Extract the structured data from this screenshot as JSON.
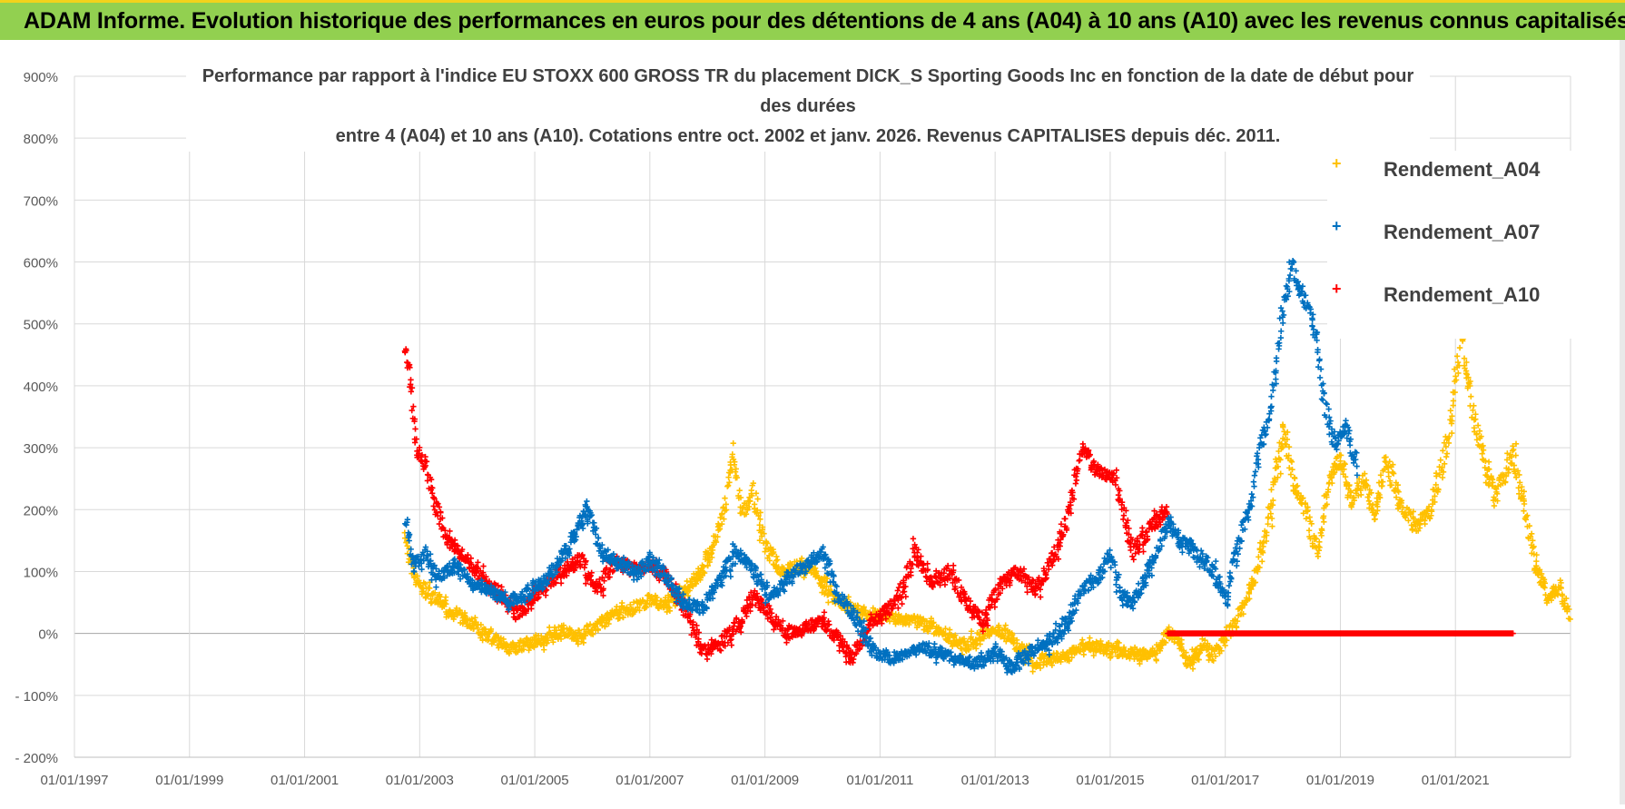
{
  "header": {
    "title": "ADAM Informe. Evolution historique des performances en euros pour des détentions de 4 ans (A04) à 10 ans (A10) avec les revenus connus capitalisés"
  },
  "colors": {
    "banner": "#92d050",
    "a04": "#ffc000",
    "a07": "#0070c0",
    "a10": "#ff0000",
    "grid": "#d9d9d9",
    "text": "#595959"
  },
  "chart_data": {
    "type": "scatter",
    "title_lines": [
      "Performance par rapport à l'indice EU STOXX 600 GROSS TR  du placement DICK_S Sporting Goods Inc en fonction de la date de début pour des durées",
      "entre 4 (A04) et 10 ans (A10).  Cotations entre oct. 2002 et janv. 2026.  Revenus CAPITALISES depuis déc. 2011."
    ],
    "x_ticks": [
      "01/01/1997",
      "01/01/1999",
      "01/01/2001",
      "01/01/2003",
      "01/01/2005",
      "01/01/2007",
      "01/01/2009",
      "01/01/2011",
      "01/01/2013",
      "01/01/2015",
      "01/01/2017",
      "01/01/2019",
      "01/01/2021"
    ],
    "y_ticks": [
      "900%",
      "800%",
      "700%",
      "600%",
      "500%",
      "400%",
      "300%",
      "200%",
      "100%",
      "0%",
      "- 100%",
      "- 200%"
    ],
    "xlim": [
      1997.0,
      2023.0
    ],
    "ylim": [
      -200,
      900
    ],
    "marker": "+",
    "series": [
      {
        "name": "Rendement_A04",
        "color": "#ffc000",
        "points": [
          [
            2002.75,
            150
          ],
          [
            2002.9,
            90
          ],
          [
            2003.2,
            60
          ],
          [
            2003.5,
            40
          ],
          [
            2003.8,
            20
          ],
          [
            2004.0,
            10
          ],
          [
            2004.3,
            -10
          ],
          [
            2004.6,
            -25
          ],
          [
            2004.9,
            -15
          ],
          [
            2005.2,
            -10
          ],
          [
            2005.5,
            5
          ],
          [
            2005.8,
            -5
          ],
          [
            2006.1,
            15
          ],
          [
            2006.4,
            30
          ],
          [
            2006.7,
            40
          ],
          [
            2007.0,
            55
          ],
          [
            2007.3,
            45
          ],
          [
            2007.6,
            70
          ],
          [
            2007.9,
            100
          ],
          [
            2008.1,
            140
          ],
          [
            2008.3,
            200
          ],
          [
            2008.45,
            290
          ],
          [
            2008.6,
            190
          ],
          [
            2008.8,
            230
          ],
          [
            2009.0,
            140
          ],
          [
            2009.3,
            100
          ],
          [
            2009.6,
            110
          ],
          [
            2009.9,
            95
          ],
          [
            2010.2,
            60
          ],
          [
            2010.5,
            40
          ],
          [
            2010.8,
            25
          ],
          [
            2011.0,
            30
          ],
          [
            2011.3,
            25
          ],
          [
            2011.6,
            20
          ],
          [
            2011.9,
            10
          ],
          [
            2012.2,
            -5
          ],
          [
            2012.5,
            -20
          ],
          [
            2012.8,
            0
          ],
          [
            2013.1,
            5
          ],
          [
            2013.4,
            -20
          ],
          [
            2013.7,
            -45
          ],
          [
            2014.0,
            -40
          ],
          [
            2014.3,
            -35
          ],
          [
            2014.6,
            -20
          ],
          [
            2014.9,
            -25
          ],
          [
            2015.2,
            -30
          ],
          [
            2015.5,
            -35
          ],
          [
            2015.8,
            -30
          ],
          [
            2016.0,
            5
          ],
          [
            2016.2,
            -20
          ],
          [
            2016.4,
            -55
          ],
          [
            2016.6,
            -15
          ],
          [
            2016.8,
            -35
          ],
          [
            2017.0,
            -10
          ],
          [
            2017.2,
            20
          ],
          [
            2017.4,
            60
          ],
          [
            2017.6,
            120
          ],
          [
            2017.8,
            200
          ],
          [
            2018.0,
            330
          ],
          [
            2018.2,
            240
          ],
          [
            2018.4,
            200
          ],
          [
            2018.6,
            130
          ],
          [
            2018.8,
            240
          ],
          [
            2019.0,
            290
          ],
          [
            2019.2,
            210
          ],
          [
            2019.4,
            250
          ],
          [
            2019.6,
            200
          ],
          [
            2019.8,
            280
          ],
          [
            2020.0,
            220
          ],
          [
            2020.3,
            170
          ],
          [
            2020.6,
            200
          ],
          [
            2020.9,
            330
          ],
          [
            2021.1,
            490
          ],
          [
            2021.3,
            360
          ],
          [
            2021.5,
            280
          ],
          [
            2021.7,
            220
          ],
          [
            2022.0,
            290
          ],
          [
            2022.2,
            200
          ],
          [
            2022.4,
            110
          ],
          [
            2022.6,
            60
          ],
          [
            2022.8,
            70
          ],
          [
            2023.0,
            30
          ]
        ]
      },
      {
        "name": "Rendement_A07",
        "color": "#0070c0",
        "points": [
          [
            2002.75,
            190
          ],
          [
            2002.9,
            110
          ],
          [
            2003.1,
            130
          ],
          [
            2003.3,
            90
          ],
          [
            2003.6,
            110
          ],
          [
            2003.9,
            80
          ],
          [
            2004.2,
            70
          ],
          [
            2004.5,
            50
          ],
          [
            2004.8,
            60
          ],
          [
            2005.1,
            80
          ],
          [
            2005.4,
            110
          ],
          [
            2005.7,
            160
          ],
          [
            2005.9,
            200
          ],
          [
            2006.2,
            130
          ],
          [
            2006.5,
            110
          ],
          [
            2006.8,
            100
          ],
          [
            2007.0,
            120
          ],
          [
            2007.3,
            90
          ],
          [
            2007.6,
            50
          ],
          [
            2007.9,
            40
          ],
          [
            2008.2,
            80
          ],
          [
            2008.5,
            130
          ],
          [
            2008.8,
            100
          ],
          [
            2009.1,
            60
          ],
          [
            2009.4,
            90
          ],
          [
            2009.7,
            110
          ],
          [
            2010.0,
            130
          ],
          [
            2010.3,
            60
          ],
          [
            2010.6,
            20
          ],
          [
            2010.9,
            -30
          ],
          [
            2011.2,
            -40
          ],
          [
            2011.5,
            -30
          ],
          [
            2011.8,
            -25
          ],
          [
            2012.1,
            -35
          ],
          [
            2012.4,
            -40
          ],
          [
            2012.7,
            -50
          ],
          [
            2013.0,
            -30
          ],
          [
            2013.3,
            -55
          ],
          [
            2013.6,
            -30
          ],
          [
            2013.9,
            -20
          ],
          [
            2014.2,
            10
          ],
          [
            2014.5,
            70
          ],
          [
            2014.8,
            90
          ],
          [
            2015.0,
            130
          ],
          [
            2015.2,
            60
          ],
          [
            2015.4,
            50
          ],
          [
            2015.6,
            90
          ],
          [
            2015.8,
            130
          ],
          [
            2016.0,
            180
          ],
          [
            2016.2,
            150
          ],
          [
            2016.5,
            130
          ],
          [
            2016.8,
            100
          ],
          [
            2017.0,
            50
          ],
          [
            2017.2,
            130
          ],
          [
            2017.4,
            200
          ],
          [
            2017.6,
            300
          ],
          [
            2017.8,
            360
          ],
          [
            2018.0,
            520
          ],
          [
            2018.15,
            600
          ],
          [
            2018.3,
            550
          ],
          [
            2018.5,
            520
          ],
          [
            2018.7,
            380
          ],
          [
            2018.9,
            310
          ],
          [
            2019.1,
            330
          ],
          [
            2019.3,
            270
          ]
        ]
      },
      {
        "name": "Rendement_A10",
        "color": "#ff0000",
        "points": [
          [
            2002.75,
            460
          ],
          [
            2002.85,
            400
          ],
          [
            2002.95,
            300
          ],
          [
            2003.1,
            270
          ],
          [
            2003.3,
            200
          ],
          [
            2003.5,
            150
          ],
          [
            2003.7,
            130
          ],
          [
            2003.9,
            110
          ],
          [
            2004.1,
            90
          ],
          [
            2004.4,
            60
          ],
          [
            2004.7,
            30
          ],
          [
            2004.9,
            50
          ],
          [
            2005.2,
            80
          ],
          [
            2005.5,
            100
          ],
          [
            2005.8,
            120
          ],
          [
            2006.1,
            70
          ],
          [
            2006.4,
            120
          ],
          [
            2006.7,
            100
          ],
          [
            2007.0,
            110
          ],
          [
            2007.3,
            90
          ],
          [
            2007.6,
            40
          ],
          [
            2007.9,
            -30
          ],
          [
            2008.2,
            -20
          ],
          [
            2008.5,
            10
          ],
          [
            2008.8,
            60
          ],
          [
            2009.1,
            30
          ],
          [
            2009.4,
            0
          ],
          [
            2009.7,
            10
          ],
          [
            2010.0,
            20
          ],
          [
            2010.3,
            -10
          ],
          [
            2010.5,
            -40
          ],
          [
            2010.8,
            10
          ],
          [
            2011.0,
            30
          ],
          [
            2011.3,
            50
          ],
          [
            2011.6,
            130
          ],
          [
            2011.9,
            80
          ],
          [
            2012.2,
            100
          ],
          [
            2012.5,
            50
          ],
          [
            2012.8,
            20
          ],
          [
            2013.1,
            80
          ],
          [
            2013.4,
            100
          ],
          [
            2013.7,
            70
          ],
          [
            2014.0,
            120
          ],
          [
            2014.3,
            200
          ],
          [
            2014.5,
            300
          ],
          [
            2014.8,
            260
          ],
          [
            2015.1,
            250
          ],
          [
            2015.4,
            130
          ],
          [
            2015.7,
            170
          ],
          [
            2016.0,
            200
          ]
        ],
        "flat_segment": {
          "from": 2016.0,
          "to": 2022.0,
          "value": 0
        }
      }
    ]
  }
}
